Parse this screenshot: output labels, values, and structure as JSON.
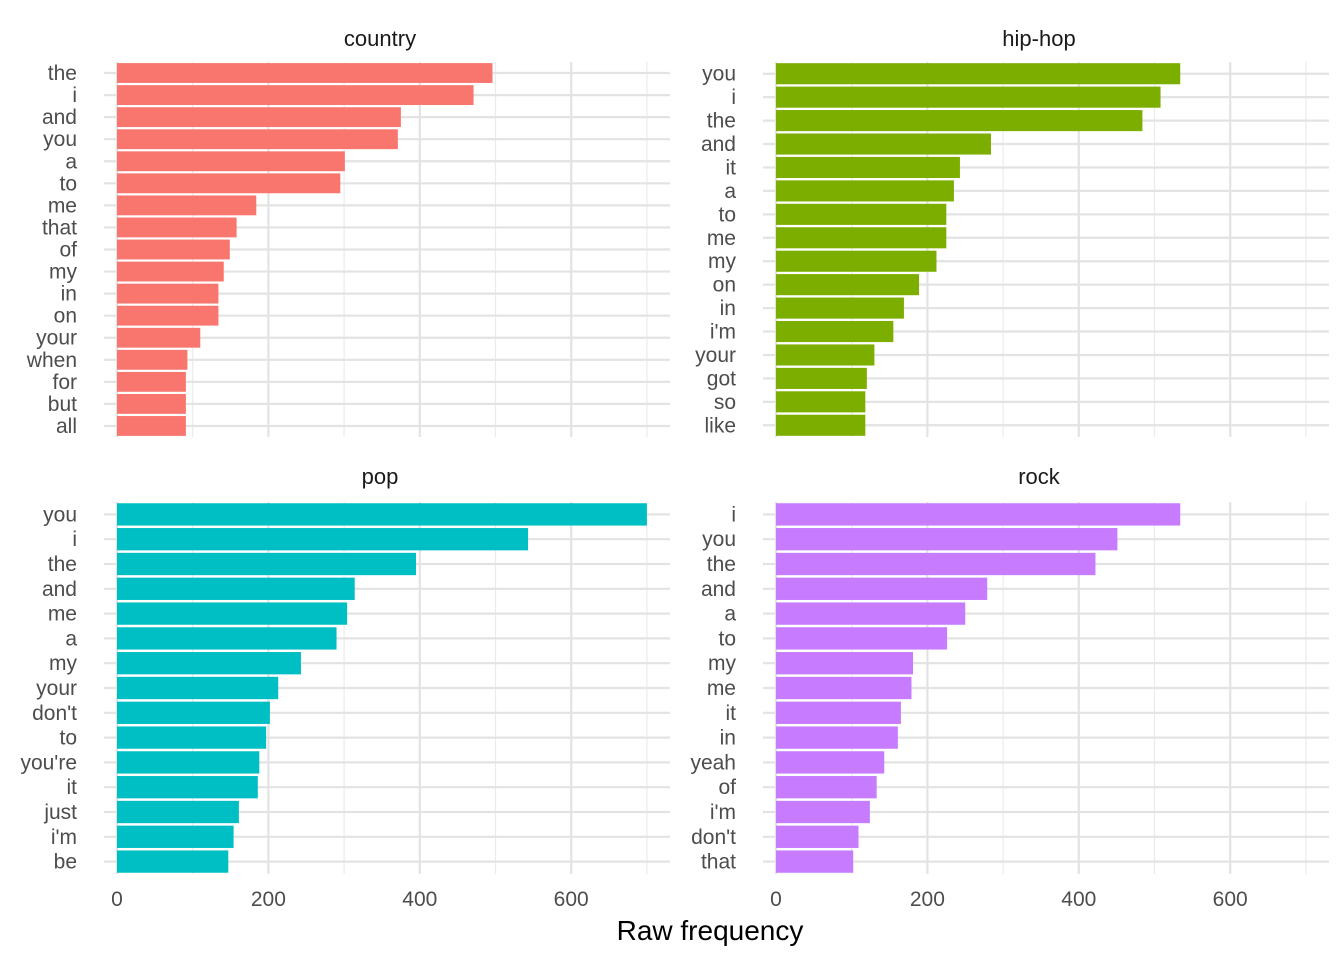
{
  "chart_data": {
    "type": "bar",
    "orientation": "horizontal",
    "facet_layout": "2x2 grid",
    "xlabel": "Raw frequency",
    "xlim": [
      0,
      700
    ],
    "x_ticks": [
      "0",
      "200",
      "400",
      "600"
    ],
    "grid": true,
    "panels": [
      {
        "title": "country",
        "color": "#F8766D",
        "categories": [
          "the",
          "i",
          "and",
          "you",
          "a",
          "to",
          "me",
          "that",
          "of",
          "my",
          "in",
          "on",
          "your",
          "when",
          "for",
          "but",
          "all"
        ],
        "values": [
          496,
          471,
          375,
          371,
          301,
          295,
          184,
          158,
          149,
          141,
          134,
          134,
          110,
          93,
          91,
          91,
          91
        ]
      },
      {
        "title": "hip-hop",
        "color": "#7CAE00",
        "categories": [
          "you",
          "i",
          "the",
          "and",
          "it",
          "a",
          "to",
          "me",
          "my",
          "on",
          "in",
          "i'm",
          "your",
          "got",
          "so",
          "like"
        ],
        "values": [
          534,
          508,
          484,
          284,
          243,
          235,
          225,
          225,
          212,
          189,
          169,
          155,
          130,
          120,
          118,
          118
        ]
      },
      {
        "title": "pop",
        "color": "#00BFC4",
        "categories": [
          "you",
          "i",
          "the",
          "and",
          "me",
          "a",
          "my",
          "your",
          "don't",
          "to",
          "you're",
          "it",
          "just",
          "i'm",
          "be"
        ],
        "values": [
          700,
          543,
          395,
          314,
          304,
          290,
          243,
          213,
          202,
          197,
          188,
          186,
          161,
          154,
          147
        ]
      },
      {
        "title": "rock",
        "color": "#C77CFF",
        "categories": [
          "i",
          "you",
          "the",
          "and",
          "a",
          "to",
          "my",
          "me",
          "it",
          "in",
          "yeah",
          "of",
          "i'm",
          "don't",
          "that"
        ],
        "values": [
          534,
          451,
          422,
          279,
          250,
          226,
          181,
          179,
          165,
          161,
          143,
          133,
          124,
          109,
          102
        ]
      }
    ]
  }
}
